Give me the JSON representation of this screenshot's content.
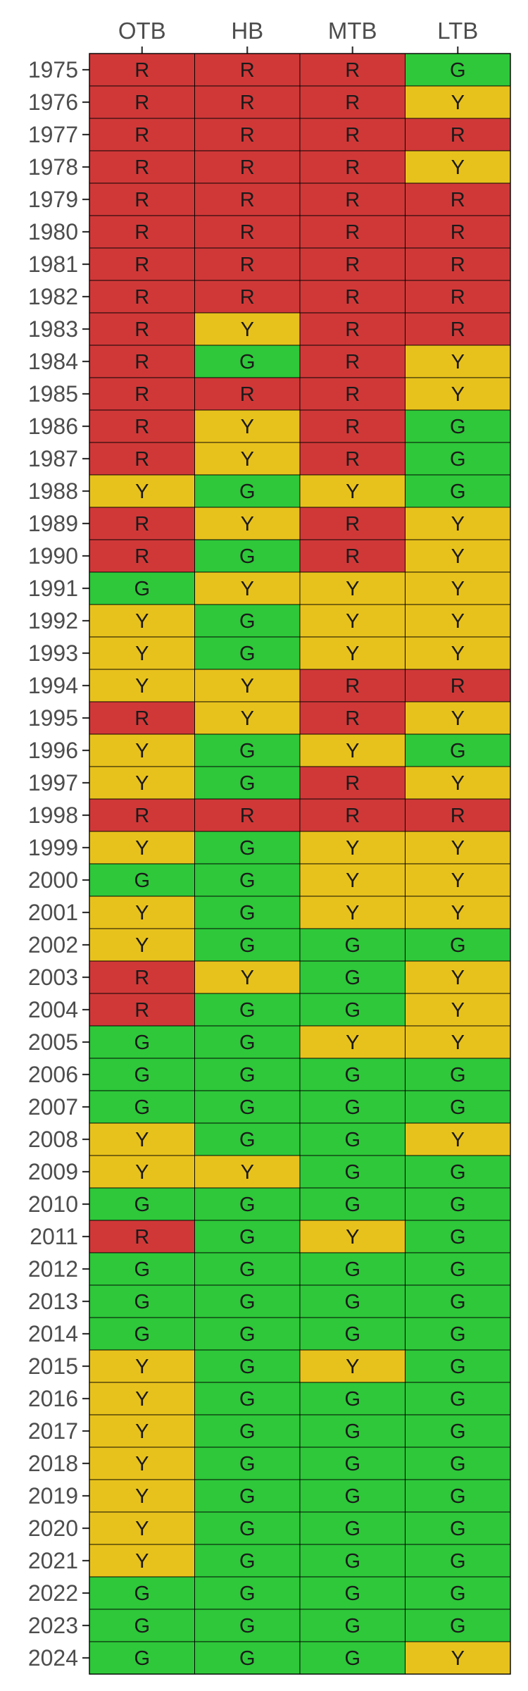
{
  "chart_data": {
    "type": "heatmap",
    "title": "",
    "xlabel": "",
    "ylabel": "",
    "columns": [
      "OTB",
      "HB",
      "MTB",
      "LTB"
    ],
    "rows": [
      "1975",
      "1976",
      "1977",
      "1978",
      "1979",
      "1980",
      "1981",
      "1982",
      "1983",
      "1984",
      "1985",
      "1986",
      "1987",
      "1988",
      "1989",
      "1990",
      "1991",
      "1992",
      "1993",
      "1994",
      "1995",
      "1996",
      "1997",
      "1998",
      "1999",
      "2000",
      "2001",
      "2002",
      "2003",
      "2004",
      "2005",
      "2006",
      "2007",
      "2008",
      "2009",
      "2010",
      "2011",
      "2012",
      "2013",
      "2014",
      "2015",
      "2016",
      "2017",
      "2018",
      "2019",
      "2020",
      "2021",
      "2022",
      "2023",
      "2024"
    ],
    "values": [
      [
        "R",
        "R",
        "R",
        "G"
      ],
      [
        "R",
        "R",
        "R",
        "Y"
      ],
      [
        "R",
        "R",
        "R",
        "R"
      ],
      [
        "R",
        "R",
        "R",
        "Y"
      ],
      [
        "R",
        "R",
        "R",
        "R"
      ],
      [
        "R",
        "R",
        "R",
        "R"
      ],
      [
        "R",
        "R",
        "R",
        "R"
      ],
      [
        "R",
        "R",
        "R",
        "R"
      ],
      [
        "R",
        "Y",
        "R",
        "R"
      ],
      [
        "R",
        "G",
        "R",
        "Y"
      ],
      [
        "R",
        "R",
        "R",
        "Y"
      ],
      [
        "R",
        "Y",
        "R",
        "G"
      ],
      [
        "R",
        "Y",
        "R",
        "G"
      ],
      [
        "Y",
        "G",
        "Y",
        "G"
      ],
      [
        "R",
        "Y",
        "R",
        "Y"
      ],
      [
        "R",
        "G",
        "R",
        "Y"
      ],
      [
        "G",
        "Y",
        "Y",
        "Y"
      ],
      [
        "Y",
        "G",
        "Y",
        "Y"
      ],
      [
        "Y",
        "G",
        "Y",
        "Y"
      ],
      [
        "Y",
        "Y",
        "R",
        "R"
      ],
      [
        "R",
        "Y",
        "R",
        "Y"
      ],
      [
        "Y",
        "G",
        "Y",
        "G"
      ],
      [
        "Y",
        "G",
        "R",
        "Y"
      ],
      [
        "R",
        "R",
        "R",
        "R"
      ],
      [
        "Y",
        "G",
        "Y",
        "Y"
      ],
      [
        "G",
        "G",
        "Y",
        "Y"
      ],
      [
        "Y",
        "G",
        "Y",
        "Y"
      ],
      [
        "Y",
        "G",
        "G",
        "G"
      ],
      [
        "R",
        "Y",
        "G",
        "Y"
      ],
      [
        "R",
        "G",
        "G",
        "Y"
      ],
      [
        "G",
        "G",
        "Y",
        "Y"
      ],
      [
        "G",
        "G",
        "G",
        "G"
      ],
      [
        "G",
        "G",
        "G",
        "G"
      ],
      [
        "Y",
        "G",
        "G",
        "Y"
      ],
      [
        "Y",
        "Y",
        "G",
        "G"
      ],
      [
        "G",
        "G",
        "G",
        "G"
      ],
      [
        "R",
        "G",
        "Y",
        "G"
      ],
      [
        "G",
        "G",
        "G",
        "G"
      ],
      [
        "G",
        "G",
        "G",
        "G"
      ],
      [
        "G",
        "G",
        "G",
        "G"
      ],
      [
        "Y",
        "G",
        "Y",
        "G"
      ],
      [
        "Y",
        "G",
        "G",
        "G"
      ],
      [
        "Y",
        "G",
        "G",
        "G"
      ],
      [
        "Y",
        "G",
        "G",
        "G"
      ],
      [
        "Y",
        "G",
        "G",
        "G"
      ],
      [
        "Y",
        "G",
        "G",
        "G"
      ],
      [
        "Y",
        "G",
        "G",
        "G"
      ],
      [
        "G",
        "G",
        "G",
        "G"
      ],
      [
        "G",
        "G",
        "G",
        "G"
      ],
      [
        "G",
        "G",
        "G",
        "Y"
      ]
    ],
    "colors": {
      "R": "#d03838",
      "Y": "#e8c21c",
      "G": "#2ec83a"
    },
    "grid": false,
    "legend": "none"
  }
}
